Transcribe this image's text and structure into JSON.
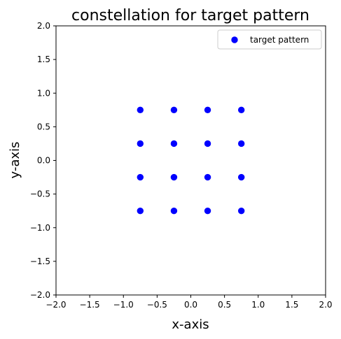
{
  "chart_data": {
    "type": "scatter",
    "title": "constellation for target pattern",
    "xlabel": "x-axis",
    "ylabel": "y-axis",
    "xlim": [
      -2.0,
      2.0
    ],
    "ylim": [
      -2.0,
      2.0
    ],
    "xticks": [
      "−2.0",
      "−1.5",
      "−1.0",
      "−0.5",
      "0.0",
      "0.5",
      "1.0",
      "1.5",
      "2.0"
    ],
    "yticks": [
      "−2.0",
      "−1.5",
      "−1.0",
      "−0.5",
      "0.0",
      "0.5",
      "1.0",
      "1.5",
      "2.0"
    ],
    "xtick_values": [
      -2.0,
      -1.5,
      -1.0,
      -0.5,
      0.0,
      0.5,
      1.0,
      1.5,
      2.0
    ],
    "ytick_values": [
      -2.0,
      -1.5,
      -1.0,
      -0.5,
      0.0,
      0.5,
      1.0,
      1.5,
      2.0
    ],
    "grid": false,
    "legend_position": "top-right",
    "series": [
      {
        "name": "target pattern",
        "color": "#0000ff",
        "marker": "circle",
        "points": [
          [
            -0.75,
            0.75
          ],
          [
            -0.25,
            0.75
          ],
          [
            0.25,
            0.75
          ],
          [
            0.75,
            0.75
          ],
          [
            -0.75,
            0.25
          ],
          [
            -0.25,
            0.25
          ],
          [
            0.25,
            0.25
          ],
          [
            0.75,
            0.25
          ],
          [
            -0.75,
            -0.25
          ],
          [
            -0.25,
            -0.25
          ],
          [
            0.25,
            -0.25
          ],
          [
            0.75,
            -0.25
          ],
          [
            -0.75,
            -0.75
          ],
          [
            -0.25,
            -0.75
          ],
          [
            0.25,
            -0.75
          ],
          [
            0.75,
            -0.75
          ]
        ]
      }
    ]
  }
}
